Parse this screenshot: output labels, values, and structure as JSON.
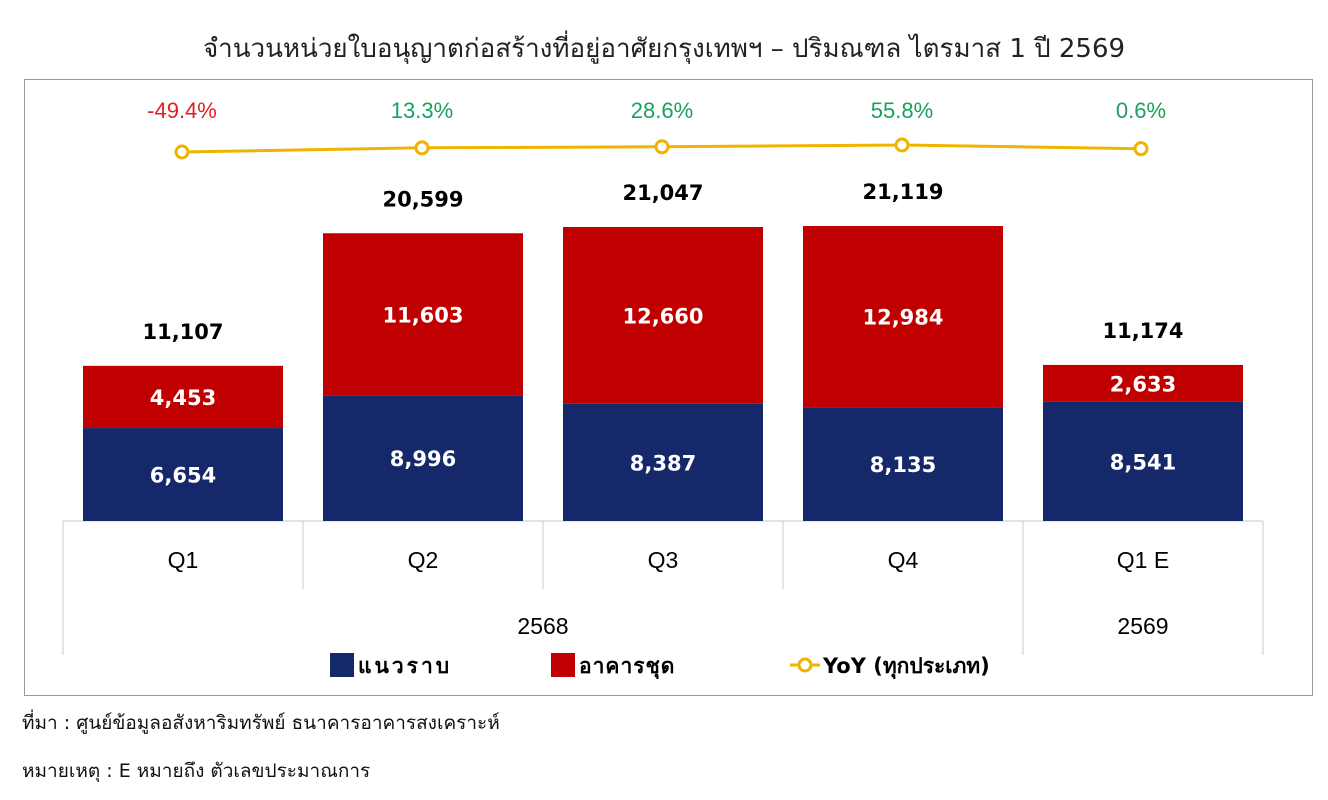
{
  "title": "จำนวนหน่วยใบอนุญาตก่อสร้างที่อยู่อาศัยกรุงเทพฯ – ปริมณฑล ไตรมาส 1 ปี 2569",
  "colors": {
    "series1": "#14286a",
    "series2": "#c00000",
    "yoy_line": "#f0b400",
    "positive": "#1aa060",
    "negative": "#e02020"
  },
  "chart_data": {
    "type": "bar",
    "stacked": true,
    "categories": [
      "Q1",
      "Q2",
      "Q3",
      "Q4",
      "Q1 E"
    ],
    "groups": [
      {
        "label": "2568",
        "categories": [
          "Q1",
          "Q2",
          "Q3",
          "Q4"
        ]
      },
      {
        "label": "2569",
        "categories": [
          "Q1 E"
        ]
      }
    ],
    "series": [
      {
        "name": "แนวราบ",
        "values": [
          6654,
          8996,
          8387,
          8135,
          8541
        ],
        "value_labels": [
          "6,654",
          "8,996",
          "8,387",
          "8,135",
          "8,541"
        ]
      },
      {
        "name": "อาคารชุด",
        "values": [
          4453,
          11603,
          12660,
          12984,
          2633
        ],
        "value_labels": [
          "4,453",
          "11,603",
          "12,660",
          "12,984",
          "2,633"
        ]
      }
    ],
    "totals": [
      11107,
      20599,
      21047,
      21119,
      11174
    ],
    "total_labels": [
      "11,107",
      "20,599",
      "21,047",
      "21,119",
      "11,174"
    ],
    "yoy": {
      "name": "YoY (ทุกประเภท)",
      "type": "line",
      "values": [
        -49.4,
        13.3,
        28.6,
        55.8,
        0.6
      ],
      "labels": [
        "-49.4%",
        "13.3%",
        "28.6%",
        "55.8%",
        "0.6%"
      ]
    },
    "legend_position": "bottom",
    "grid": false
  },
  "notes": {
    "source": "ที่มา : ศูนย์ข้อมูลอสังหาริมทรัพย์ ธนาคารอาคารสงเคราะห์",
    "remark": "หมายเหตุ : E หมายถึง ตัวเลขประมาณการ"
  }
}
